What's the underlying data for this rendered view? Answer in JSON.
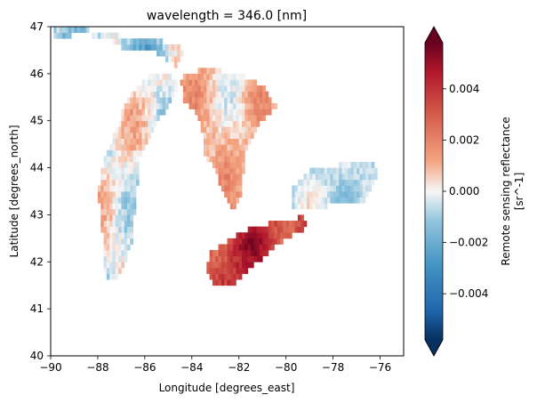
{
  "chart_data": {
    "type": "heatmap",
    "title": "wavelength = 346.0 [nm]",
    "xlabel": "Longitude [degrees_east]",
    "ylabel": "Latitude [degrees_north]",
    "xlim": [
      -90,
      -75
    ],
    "ylim": [
      40,
      47
    ],
    "x_ticks": [
      -90,
      -88,
      -86,
      -84,
      -82,
      -80,
      -78,
      -76
    ],
    "x_tick_labels": [
      "−90",
      "−88",
      "−86",
      "−84",
      "−82",
      "−80",
      "−78",
      "−76"
    ],
    "y_ticks": [
      40,
      41,
      42,
      43,
      44,
      45,
      46,
      47
    ],
    "y_tick_labels": [
      "40",
      "41",
      "42",
      "43",
      "44",
      "45",
      "46",
      "47"
    ],
    "cell_size_deg": 0.125,
    "colormap": "RdBu_r",
    "colorbar": {
      "label_line1": "Remote sensing reflectance",
      "label_line2": "[sr^-1]",
      "vmin": -0.0058,
      "vmax": 0.0058,
      "extend": "both",
      "ticks": [
        -0.004,
        -0.002,
        0.0,
        0.002,
        0.004
      ],
      "tick_labels": [
        "−0.004",
        "−0.002",
        "0.000",
        "0.002",
        "0.004"
      ]
    },
    "lakes": [
      {
        "name": "Lake Superior",
        "value_range": [
          -0.0035,
          0.0015
        ],
        "outline": [
          [
            -89.9,
            46.95
          ],
          [
            -88.5,
            46.95
          ],
          [
            -86.8,
            46.8
          ],
          [
            -85.5,
            46.7
          ],
          [
            -84.6,
            46.65
          ],
          [
            -84.4,
            46.45
          ],
          [
            -84.6,
            46.15
          ],
          [
            -85.6,
            46.45
          ],
          [
            -86.6,
            46.45
          ],
          [
            -87.6,
            46.75
          ],
          [
            -88.6,
            46.85
          ],
          [
            -89.9,
            46.75
          ]
        ]
      },
      {
        "name": "Lake Michigan",
        "value_range": [
          -0.002,
          0.002
        ],
        "outline": [
          [
            -85.0,
            46.05
          ],
          [
            -84.6,
            45.75
          ],
          [
            -85.0,
            45.35
          ],
          [
            -85.6,
            44.8
          ],
          [
            -86.2,
            44.2
          ],
          [
            -86.4,
            43.2
          ],
          [
            -86.5,
            42.5
          ],
          [
            -86.9,
            41.9
          ],
          [
            -87.3,
            41.6
          ],
          [
            -87.7,
            41.7
          ],
          [
            -87.8,
            42.6
          ],
          [
            -88.0,
            43.5
          ],
          [
            -87.7,
            44.2
          ],
          [
            -87.1,
            45.0
          ],
          [
            -86.7,
            45.5
          ],
          [
            -86.0,
            45.9
          ],
          [
            -85.4,
            46.05
          ]
        ]
      },
      {
        "name": "Lake Huron",
        "value_range": [
          -0.001,
          0.0025
        ],
        "outline": [
          [
            -84.5,
            45.9
          ],
          [
            -83.6,
            46.1
          ],
          [
            -82.4,
            46.05
          ],
          [
            -81.6,
            45.9
          ],
          [
            -80.9,
            45.7
          ],
          [
            -80.4,
            45.3
          ],
          [
            -81.2,
            44.9
          ],
          [
            -81.7,
            44.4
          ],
          [
            -81.9,
            43.4
          ],
          [
            -82.3,
            43.1
          ],
          [
            -82.7,
            43.5
          ],
          [
            -83.0,
            44.0
          ],
          [
            -83.5,
            44.3
          ],
          [
            -83.6,
            45.0
          ],
          [
            -84.3,
            45.4
          ]
        ]
      },
      {
        "name": "Lake Erie",
        "value_range": [
          0.002,
          0.0058
        ],
        "outline": [
          [
            -83.4,
            41.85
          ],
          [
            -83.2,
            42.2
          ],
          [
            -82.5,
            42.45
          ],
          [
            -81.4,
            42.75
          ],
          [
            -80.4,
            42.85
          ],
          [
            -79.3,
            42.95
          ],
          [
            -79.0,
            42.75
          ],
          [
            -80.3,
            42.4
          ],
          [
            -81.4,
            41.9
          ],
          [
            -82.3,
            41.5
          ],
          [
            -83.1,
            41.55
          ]
        ]
      },
      {
        "name": "Lake Ontario",
        "value_range": [
          -0.002,
          0.0008
        ],
        "outline": [
          [
            -79.8,
            43.15
          ],
          [
            -79.8,
            43.55
          ],
          [
            -79.0,
            43.95
          ],
          [
            -78.0,
            44.05
          ],
          [
            -77.0,
            44.1
          ],
          [
            -76.3,
            44.15
          ],
          [
            -76.1,
            43.8
          ],
          [
            -76.6,
            43.3
          ],
          [
            -77.6,
            43.25
          ],
          [
            -78.6,
            43.15
          ]
        ]
      }
    ]
  }
}
